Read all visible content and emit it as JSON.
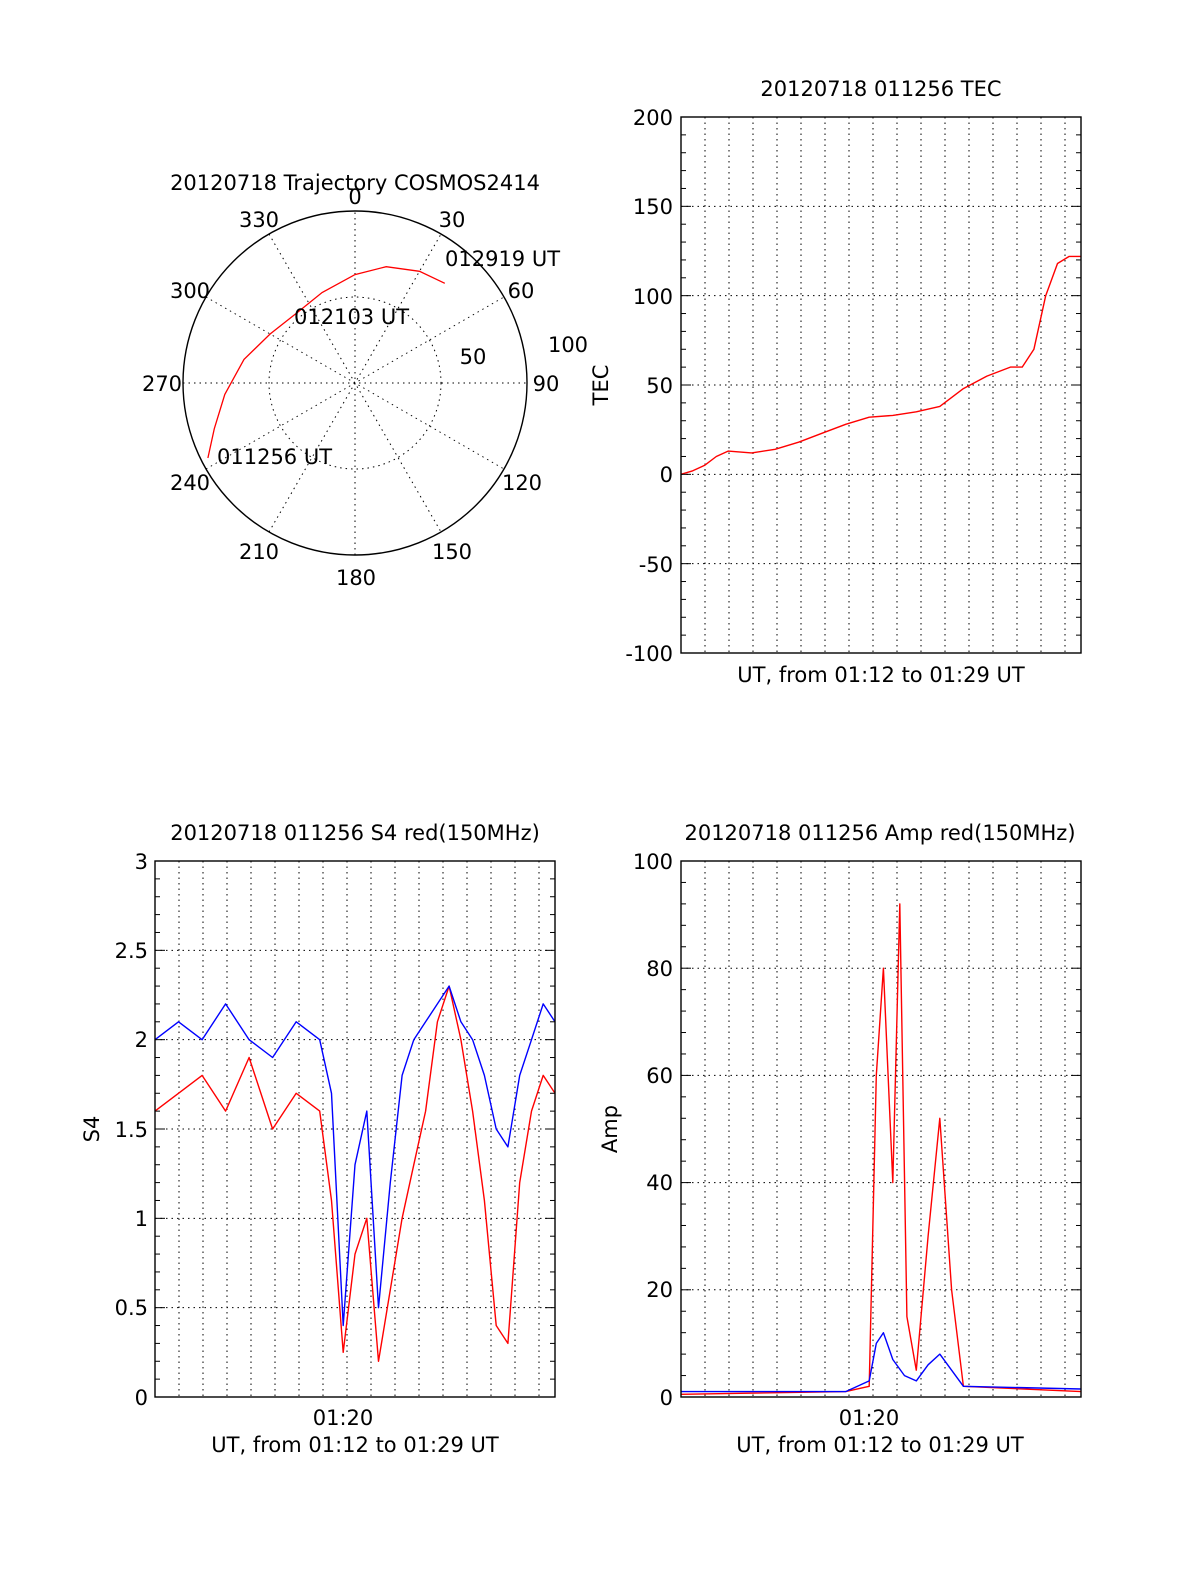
{
  "chart_data": [
    {
      "type": "polar",
      "title": "20120718 Trajectory COSMOS2414",
      "angle_tick_labels": [
        "0",
        "30",
        "60",
        "90",
        "120",
        "150",
        "180",
        "210",
        "240",
        "270",
        "300",
        "330"
      ],
      "radius_tick_labels": [
        "50",
        "100"
      ],
      "rlim": [
        0,
        100
      ],
      "grid": true,
      "series": [
        {
          "color": "#ff0000",
          "points": [
            {
              "az": 243,
              "r": 96
            },
            {
              "az": 252,
              "r": 86
            },
            {
              "az": 265,
              "r": 76
            },
            {
              "az": 282,
              "r": 66
            },
            {
              "az": 300,
              "r": 57
            },
            {
              "az": 320,
              "r": 53
            },
            {
              "az": 340,
              "r": 56
            },
            {
              "az": 0,
              "r": 63
            },
            {
              "az": 15,
              "r": 70
            },
            {
              "az": 30,
              "r": 75
            },
            {
              "az": 42,
              "r": 78
            }
          ]
        }
      ],
      "annotations": [
        {
          "text": "012919 UT",
          "az": 38,
          "r": 82
        },
        {
          "text": "012103 UT",
          "az": 336,
          "r": 44
        },
        {
          "text": "011256 UT",
          "az": 235,
          "r": 62
        }
      ]
    },
    {
      "type": "line",
      "title": "20120718 011256 TEC",
      "xlabel": "UT, from 01:12 to 01:29 UT",
      "ylabel": "TEC",
      "xlim": [
        0,
        17
      ],
      "ylim": [
        -100,
        200
      ],
      "yticks": [
        "200",
        "150",
        "100",
        "50",
        "0",
        "-50",
        "-100"
      ],
      "grid": true,
      "series": [
        {
          "color": "#ff0000",
          "x": [
            0,
            0.5,
            1,
            1.5,
            2,
            3,
            4,
            5,
            6,
            7,
            8,
            9,
            10,
            11,
            12,
            13,
            14,
            14.5,
            15,
            15.5,
            16,
            16.5,
            17
          ],
          "y": [
            0,
            2,
            5,
            10,
            13,
            12,
            14,
            18,
            23,
            28,
            32,
            33,
            35,
            38,
            48,
            55,
            60,
            60,
            70,
            100,
            118,
            122,
            122
          ]
        }
      ]
    },
    {
      "type": "line",
      "title": "20120718 011256 S4 red(150MHz)",
      "xlabel": "UT, from 01:12 to 01:29 UT",
      "ylabel": "S4",
      "xlim": [
        0,
        17
      ],
      "ylim": [
        0,
        3
      ],
      "yticks": [
        "3",
        "2.5",
        "2",
        "1.5",
        "1",
        "0.5",
        "0"
      ],
      "xtick_labels": [
        {
          "label": "01:20",
          "x": 8
        }
      ],
      "grid": true,
      "series": [
        {
          "color": "#ff0000",
          "x": [
            0,
            1,
            2,
            3,
            4,
            5,
            6,
            7,
            7.5,
            8,
            8.5,
            9,
            9.5,
            10,
            10.5,
            11,
            11.5,
            12,
            12.5,
            13,
            13.5,
            14,
            14.5,
            15,
            15.5,
            16,
            16.5,
            17
          ],
          "y": [
            1.6,
            1.7,
            1.8,
            1.6,
            1.9,
            1.5,
            1.7,
            1.6,
            1.1,
            0.25,
            0.8,
            1.0,
            0.2,
            0.6,
            1.0,
            1.3,
            1.6,
            2.1,
            2.3,
            2.0,
            1.6,
            1.1,
            0.4,
            0.3,
            1.2,
            1.6,
            1.8,
            1.7
          ]
        },
        {
          "color": "#0000ff",
          "x": [
            0,
            1,
            2,
            3,
            4,
            5,
            6,
            7,
            7.5,
            8,
            8.5,
            9,
            9.5,
            10,
            10.5,
            11,
            11.5,
            12,
            12.5,
            13,
            13.5,
            14,
            14.5,
            15,
            15.5,
            16,
            16.5,
            17
          ],
          "y": [
            2.0,
            2.1,
            2.0,
            2.2,
            2.0,
            1.9,
            2.1,
            2.0,
            1.7,
            0.4,
            1.3,
            1.6,
            0.5,
            1.2,
            1.8,
            2.0,
            2.1,
            2.2,
            2.3,
            2.1,
            2.0,
            1.8,
            1.5,
            1.4,
            1.8,
            2.0,
            2.2,
            2.1
          ]
        }
      ]
    },
    {
      "type": "line",
      "title": "20120718 011256 Amp red(150MHz)",
      "xlabel": "UT, from 01:12 to 01:29 UT",
      "ylabel": "Amp",
      "xlim": [
        0,
        17
      ],
      "ylim": [
        0,
        100
      ],
      "yticks": [
        "100",
        "80",
        "60",
        "40",
        "20",
        "0"
      ],
      "xtick_labels": [
        {
          "label": "01:20",
          "x": 8
        }
      ],
      "grid": true,
      "series": [
        {
          "color": "#ff0000",
          "x": [
            0,
            7,
            8,
            8.3,
            8.6,
            9.0,
            9.3,
            9.6,
            10.0,
            10.5,
            11.0,
            11.5,
            12,
            17
          ],
          "y": [
            0.5,
            1,
            2,
            60,
            80,
            40,
            92,
            15,
            5,
            30,
            52,
            20,
            2,
            1
          ]
        },
        {
          "color": "#0000ff",
          "x": [
            0,
            7,
            8,
            8.3,
            8.6,
            9.0,
            9.5,
            10.0,
            10.5,
            11.0,
            11.5,
            12,
            17
          ],
          "y": [
            1,
            1,
            3,
            10,
            12,
            7,
            4,
            3,
            6,
            8,
            5,
            2,
            1.5
          ]
        }
      ]
    }
  ]
}
